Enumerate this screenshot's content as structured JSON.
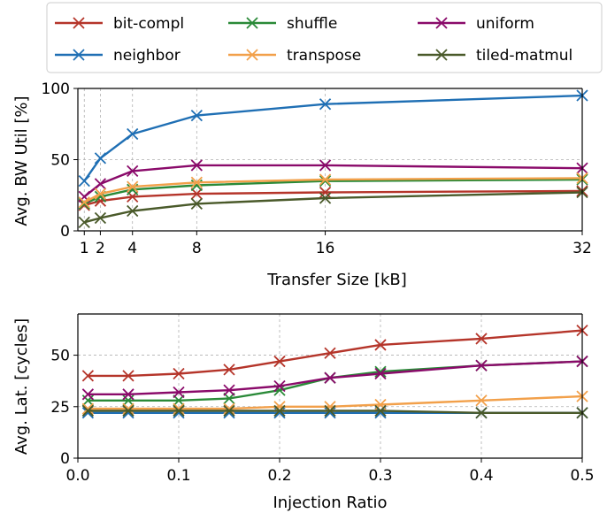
{
  "legend": {
    "entries": [
      {
        "name": "bit-compl",
        "color": "#b5352a"
      },
      {
        "name": "shuffle",
        "color": "#2a8a38"
      },
      {
        "name": "uniform",
        "color": "#8a0a6a"
      },
      {
        "name": "neighbor",
        "color": "#1f6fb4"
      },
      {
        "name": "transpose",
        "color": "#f2a04a"
      },
      {
        "name": "tiled-matmul",
        "color": "#4a5a2a"
      }
    ]
  },
  "chart_data": [
    {
      "type": "line",
      "xlabel": "Transfer Size [kB]",
      "ylabel": "Avg. BW Util [%]",
      "xlim": [
        0.6,
        32
      ],
      "ylim": [
        0,
        100
      ],
      "x_ticks": [
        1,
        2,
        4,
        8,
        16,
        32
      ],
      "y_ticks": [
        0,
        50,
        100
      ],
      "grid": true,
      "marker": "x",
      "x": [
        1,
        2,
        4,
        8,
        16,
        32
      ],
      "series": [
        {
          "name": "bit-compl",
          "color": "#b5352a",
          "values": [
            18,
            21,
            24,
            26,
            27,
            28
          ]
        },
        {
          "name": "shuffle",
          "color": "#2a8a38",
          "values": [
            19,
            24,
            29,
            32,
            35,
            36
          ]
        },
        {
          "name": "uniform",
          "color": "#8a0a6a",
          "values": [
            24,
            33,
            42,
            46,
            46,
            44
          ]
        },
        {
          "name": "neighbor",
          "color": "#1f6fb4",
          "values": [
            35,
            51,
            68,
            81,
            89,
            95
          ]
        },
        {
          "name": "transpose",
          "color": "#f2a04a",
          "values": [
            20,
            26,
            31,
            34,
            36,
            37
          ]
        },
        {
          "name": "tiled-matmul",
          "color": "#4a5a2a",
          "values": [
            6,
            9,
            14,
            19,
            23,
            27
          ]
        }
      ]
    },
    {
      "type": "line",
      "xlabel": "Injection Ratio",
      "ylabel": "Avg. Lat. [cycles]",
      "xlim": [
        0,
        0.5
      ],
      "ylim": [
        0,
        70
      ],
      "x_ticks": [
        0.0,
        0.1,
        0.2,
        0.3,
        0.4,
        0.5
      ],
      "x_tick_labels": [
        "0.0",
        "0.1",
        "0.2",
        "0.3",
        "0.4",
        "0.5"
      ],
      "y_ticks": [
        0,
        25,
        50
      ],
      "grid": true,
      "marker": "x",
      "x": [
        0.01,
        0.05,
        0.1,
        0.15,
        0.2,
        0.25,
        0.3,
        0.4,
        0.5
      ],
      "series": [
        {
          "name": "bit-compl",
          "color": "#b5352a",
          "values": [
            40,
            40,
            41,
            43,
            47,
            51,
            55,
            58,
            62
          ]
        },
        {
          "name": "shuffle",
          "color": "#2a8a38",
          "values": [
            28,
            28,
            28,
            29,
            33,
            39,
            42,
            45,
            47
          ]
        },
        {
          "name": "uniform",
          "color": "#8a0a6a",
          "values": [
            31,
            31,
            32,
            33,
            35,
            39,
            41,
            45,
            47
          ]
        },
        {
          "name": "neighbor",
          "color": "#1f6fb4",
          "values": [
            22,
            22,
            22,
            22,
            22,
            22,
            22,
            22,
            22
          ]
        },
        {
          "name": "transpose",
          "color": "#f2a04a",
          "values": [
            24,
            24,
            24,
            24,
            25,
            25,
            26,
            28,
            30
          ]
        },
        {
          "name": "tiled-matmul",
          "color": "#4a5a2a",
          "values": [
            23,
            23,
            23,
            23,
            23,
            23,
            23,
            22,
            22
          ]
        }
      ]
    }
  ]
}
